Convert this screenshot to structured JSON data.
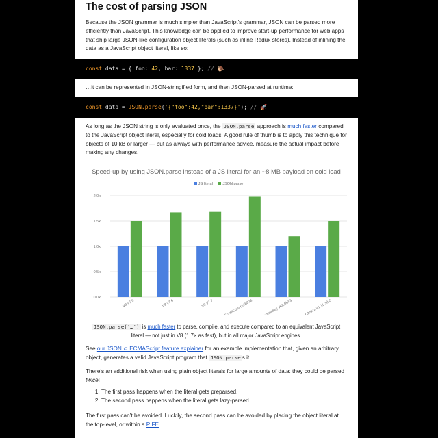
{
  "article": {
    "heading": "The cost of parsing JSON",
    "para1": "Because the JSON grammar is much simpler than JavaScript’s grammar, JSON can be parsed more efficiently than JavaScript. This knowledge can be applied to improve start-up performance for web apps that ship large JSON-like configuration object literals (such as inline Redux stores). Instead of inlining the data as a JavaScript object literal, like so:",
    "code1": {
      "kw": "const",
      "pre": " data = { foo: ",
      "n1": "42",
      "mid": ", bar: ",
      "n2": "1337",
      "post": " }; ",
      "comment": "// 🐌"
    },
    "para2": "…it can be represented in JSON-stringified form, and then JSON-parsed at runtime:",
    "code2": {
      "kw": "const",
      "pre": " data = ",
      "fn": "JSON.parse",
      "open": "(",
      "str": "'{\"foo\":42,\"bar\":1337}'",
      "close": "); ",
      "comment": "// 🚀"
    },
    "para3": {
      "before": "As long as the JSON string is only evaluated once, the ",
      "code": "JSON.parse",
      "mid": " approach is ",
      "link": "much faster",
      "after": " compared to the JavaScript object literal, especially for cold loads. A good rule of thumb is to apply this technique for objects of 10 kB or larger — but as always with performance advice, measure the actual impact before making any changes."
    },
    "caption": {
      "code": "JSON.parse('…')",
      "is": " is ",
      "link": "much faster",
      "after": " to parse, compile, and execute compared to an equivalent JavaScript literal — not just in V8 (1.7× as fast), but in all major JavaScript engines."
    },
    "para4": {
      "see": "See ",
      "link": "our JSON ⊂ ECMAScript feature explainer",
      "mid": " for an example implementation that, given an arbitrary object, generates a valid JavaScript program that ",
      "code": "JSON.parse",
      "after": "s it."
    },
    "para5": {
      "before": "There’s an additional risk when using plain object literals for large amounts of data: they could be parsed ",
      "em": "twice",
      "after": "!"
    },
    "list": [
      "The first pass happens when the literal gets preparsed.",
      "The second pass happens when the literal gets lazy-parsed."
    ],
    "para6": {
      "before": "The first pass can’t be avoided. Luckily, the second pass can be avoided by placing the object literal at the top-level, or within a ",
      "link": "PIFE",
      "after": "."
    }
  },
  "chart_data": {
    "type": "bar",
    "title": "Speed-up by using JSON.parse instead of a JS literal for an ~8 MB payload on cold load",
    "categories": [
      "V8 v7.5",
      "V8 v7.6",
      "V8 v7.7",
      "JavaScriptCore r246878",
      "SpiderMonkey v68.0b13",
      "Chakra v1.11.10.0"
    ],
    "series": [
      {
        "name": "JS literal",
        "color": "#4a7fe0",
        "values": [
          1.0,
          1.0,
          1.0,
          1.0,
          1.0,
          1.0
        ]
      },
      {
        "name": "JSON.parse",
        "color": "#5aaa48",
        "values": [
          1.5,
          1.67,
          1.68,
          1.98,
          1.2,
          1.5
        ]
      }
    ],
    "yticks": [
      "0.0x",
      "0.5x",
      "1.0x",
      "1.5x",
      "2.0x"
    ],
    "ylim": [
      0,
      2
    ],
    "grid": true,
    "legend": "top-center"
  }
}
